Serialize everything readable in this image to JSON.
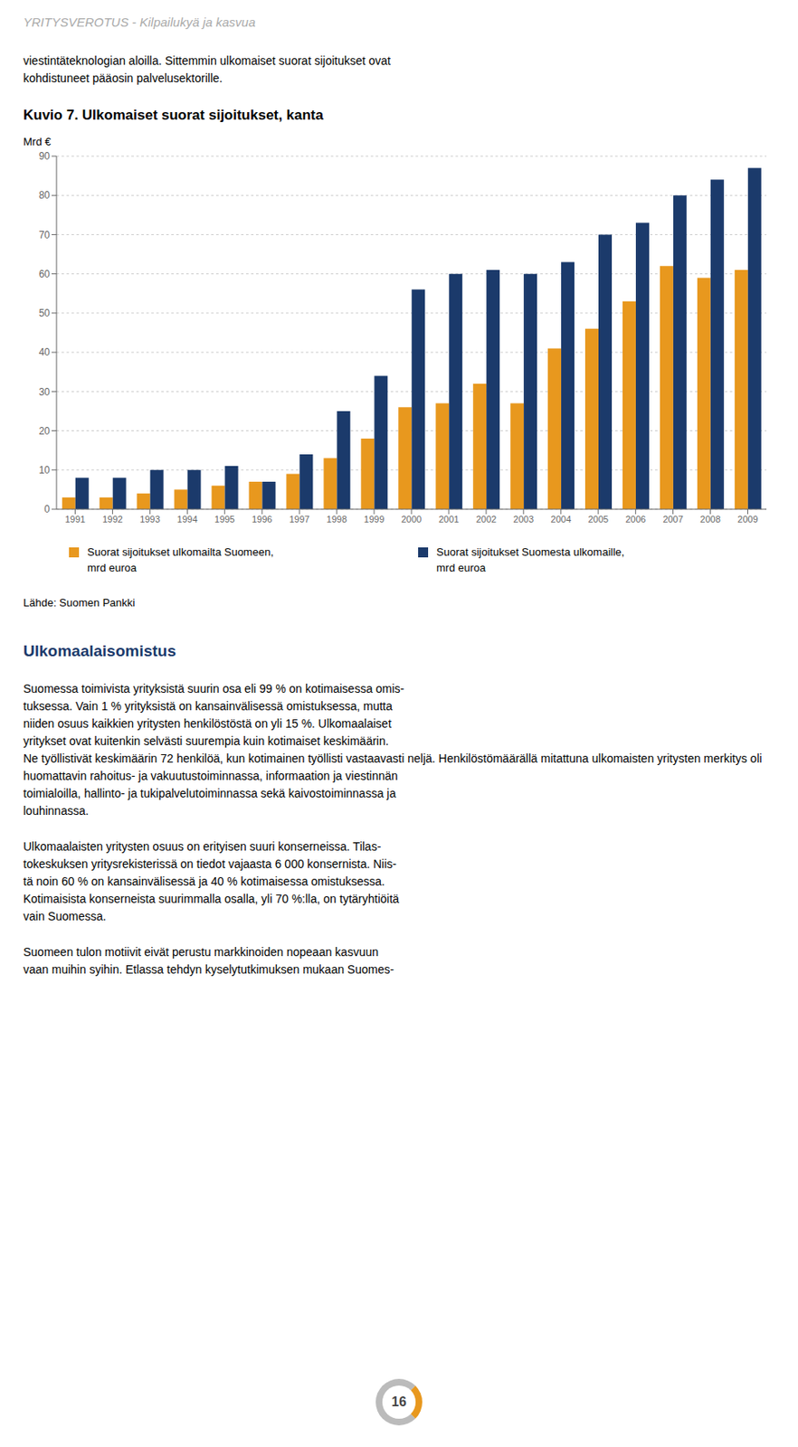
{
  "header": "YRITYSVEROTUS - Kilpailukyä ja kasvua",
  "intro_text": "viestintäteknologian aloilla. Sittemmin ulkomaiset suorat sijoitukset ovat\nkohdistuneet pääosin palvelusektorille.",
  "chart_data": {
    "type": "bar",
    "title": "Kuvio 7. Ulkomaiset suorat sijoitukset, kanta",
    "y_label": "Mrd €",
    "categories": [
      "1991",
      "1992",
      "1993",
      "1994",
      "1995",
      "1996",
      "1997",
      "1998",
      "1999",
      "2000",
      "2001",
      "2002",
      "2003",
      "2004",
      "2005",
      "2006",
      "2007",
      "2008",
      "2009"
    ],
    "series": [
      {
        "name": "Suorat sijoitukset ulkomailta Suomeen,\nmrd euroa",
        "color": "#E8981E",
        "values": [
          3,
          3,
          4,
          5,
          6,
          7,
          9,
          13,
          18,
          26,
          27,
          32,
          27,
          41,
          46,
          53,
          62,
          59,
          61
        ]
      },
      {
        "name": "Suorat sijoitukset Suomesta ulkomaille,\nmrd euroa",
        "color": "#1B3A6B",
        "values": [
          8,
          8,
          10,
          10,
          11,
          7,
          14,
          25,
          34,
          56,
          60,
          61,
          60,
          63,
          70,
          73,
          80,
          84,
          87
        ]
      }
    ],
    "ylim": [
      0,
      90
    ],
    "yticks": [
      0,
      10,
      20,
      30,
      40,
      50,
      60,
      70,
      80,
      90
    ],
    "grid": true,
    "legend": "bottom"
  },
  "source": "Lähde: Suomen Pankki",
  "section_title": "Ulkomaalaisomistus",
  "body_text": [
    "Suomessa toimivista yrityksistä suurin osa eli 99 % on kotimaisessa omis-\ntuksessa. Vain 1 % yrityksistä on kansainvälisessä omistuksessa, mutta\nniiden osuus kaikkien yritysten henkilöstöstä on yli 15 %. Ulkomaalaiset\nyritykset ovat kuitenkin selvästi suurempia kuin kotimaiset keskimäärin.\nNe työllistivät keskimäärin 72 henkilöä, kun kotimainen työllisti vastaavasti neljä. Henkilöstömäärällä mitattuna ulkomaisten yritysten merkitys oli\nhuomattavin rahoitus- ja vakuutustoiminnassa, informaation ja viestinnän\ntoimialoilla, hallinto- ja tukipalvelutoiminnassa sekä kaivostoiminnassa ja\nlouhinnassa.",
    "Ulkomaalaisten yritysten osuus on erityisen suuri konserneissa. Tilas-\ntokeskuksen yritysrekisterissä on tiedot vajaasta 6 000 konsernista. Niis-\ntä noin 60 % on kansainvälisessä ja 40 % kotimaisessa omistuksessa.\nKotimaisista konserneista suurimmalla osalla, yli 70 %:lla, on tytäryhtiöitä\nvain Suomessa.",
    "Suomeen tulon motiivit eivät perustu markkinoiden nopeaan kasvuun\nvaan muihin syihin. Etlassa tehdyn kyselytutkimuksen mukaan Suomes-"
  ],
  "page_number": "16"
}
